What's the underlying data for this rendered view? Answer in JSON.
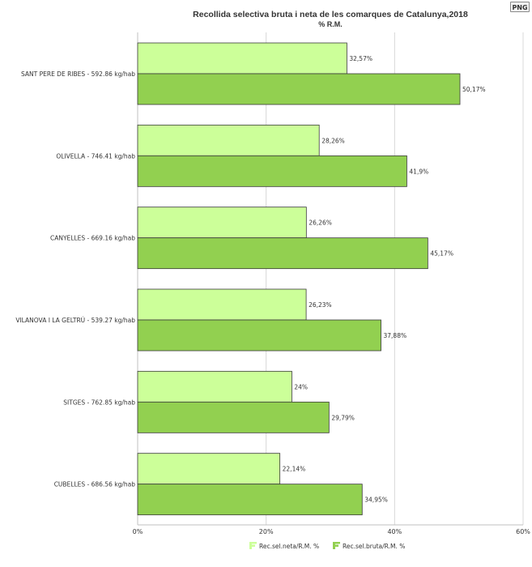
{
  "export_button": {
    "label": "PNG"
  },
  "chart_data": {
    "type": "bar",
    "orientation": "horizontal",
    "title": "Recollida selectiva bruta i neta de les comarques de Catalunya,2018",
    "subtitle": "% R.M.",
    "categories": [
      "SANT PERE DE RIBES - 592.86 kg/hab",
      "OLIVELLA - 746.41 kg/hab",
      "CANYELLES - 669.16 kg/hab",
      "VILANOVA I LA GELTRÚ - 539.27 kg/hab",
      "SITGES - 762.85 kg/hab",
      "CUBELLES - 686.56 kg/hab"
    ],
    "series": [
      {
        "name": "Rec.sel.neta/R.M. %",
        "color": "#ccff99",
        "values": [
          32.57,
          28.26,
          26.26,
          26.23,
          24,
          22.14
        ],
        "labels": [
          "32,57%",
          "28,26%",
          "26,26%",
          "26,23%",
          "24%",
          "22,14%"
        ]
      },
      {
        "name": "Rec.sel.bruta/R.M. %",
        "color": "#92d050",
        "values": [
          50.17,
          41.9,
          45.17,
          37.88,
          29.79,
          34.95
        ],
        "labels": [
          "50,17%",
          "41,9%",
          "45,17%",
          "37,88%",
          "29,79%",
          "34,95%"
        ]
      }
    ],
    "xlim": [
      0,
      60
    ],
    "ticks": [
      0,
      20,
      40,
      60
    ],
    "tick_labels": [
      "0%",
      "20%",
      "40%",
      "60%"
    ],
    "grid": true,
    "legend_position": "bottom"
  }
}
